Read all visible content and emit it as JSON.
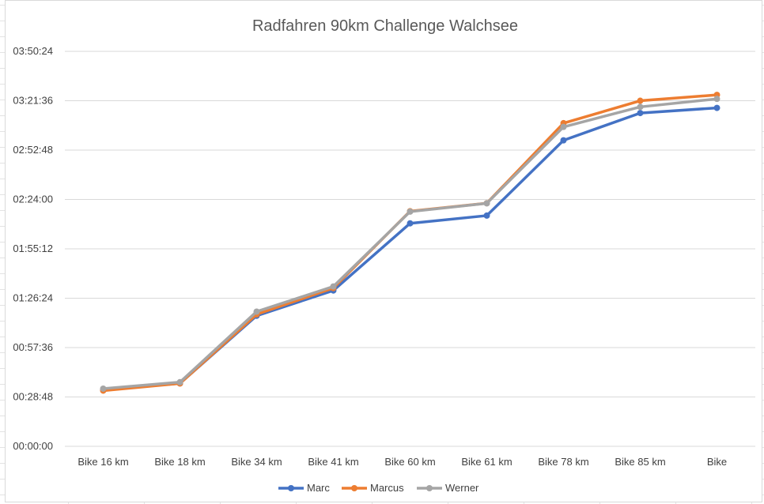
{
  "chart_data": {
    "type": "line",
    "title": "Radfahren 90km Challenge Walchsee",
    "xlabel": "",
    "ylabel": "",
    "categories": [
      "Bike 16 km",
      "Bike 18 km",
      "Bike 34 km",
      "Bike 41 km",
      "Bike 60 km",
      "Bike 61 km",
      "Bike 78 km",
      "Bike 85 km",
      "Bike"
    ],
    "y_unit": "seconds (h:mm:ss)",
    "ylim": [
      0,
      13824
    ],
    "y_ticks": [
      "00:00:00",
      "00:28:48",
      "00:57:36",
      "01:26:24",
      "01:55:12",
      "02:24:00",
      "02:52:48",
      "03:21:36",
      "03:50:24"
    ],
    "grid": true,
    "legend_position": "bottom",
    "series": [
      {
        "name": "Marc",
        "color": "#4472c4",
        "values": [
          1975,
          2205,
          4570,
          5455,
          7805,
          8075,
          10710,
          11665,
          11845
        ]
      },
      {
        "name": "Marcus",
        "color": "#ed7d31",
        "values": [
          1950,
          2200,
          4620,
          5540,
          8230,
          8510,
          11310,
          12095,
          12300
        ]
      },
      {
        "name": "Werner",
        "color": "#a5a5a5",
        "values": [
          2020,
          2245,
          4715,
          5595,
          8215,
          8505,
          11180,
          11880,
          12160
        ]
      }
    ]
  }
}
